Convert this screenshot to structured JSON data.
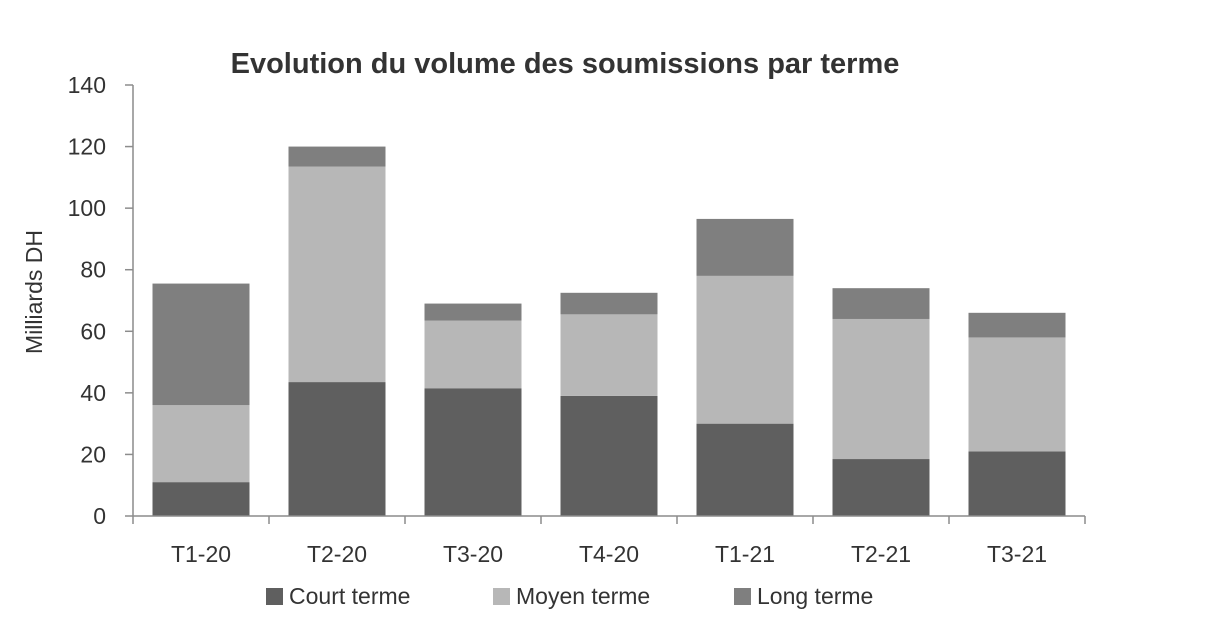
{
  "chart_data": {
    "type": "bar",
    "stacked": true,
    "title": "Evolution du volume des soumissions par terme",
    "xlabel": "",
    "ylabel": "Milliards DH",
    "ylim": [
      0,
      140
    ],
    "yticks": [
      0,
      20,
      40,
      60,
      80,
      100,
      120,
      140
    ],
    "categories": [
      "T1-20",
      "T2-20",
      "T3-20",
      "T4-20",
      "T1-21",
      "T2-21",
      "T3-21"
    ],
    "series": [
      {
        "name": "Court terme",
        "color": "#5f5f5f",
        "values": [
          11,
          43.5,
          41.5,
          39,
          30,
          18.5,
          21
        ]
      },
      {
        "name": "Moyen terme",
        "color": "#b7b7b7",
        "values": [
          25,
          70,
          22,
          26.5,
          48,
          45.5,
          37
        ]
      },
      {
        "name": "Long terme",
        "color": "#7f7f7f",
        "values": [
          39.5,
          6.5,
          5.5,
          7,
          18.5,
          10,
          8
        ]
      }
    ],
    "grid": false,
    "legend_position": "bottom"
  }
}
